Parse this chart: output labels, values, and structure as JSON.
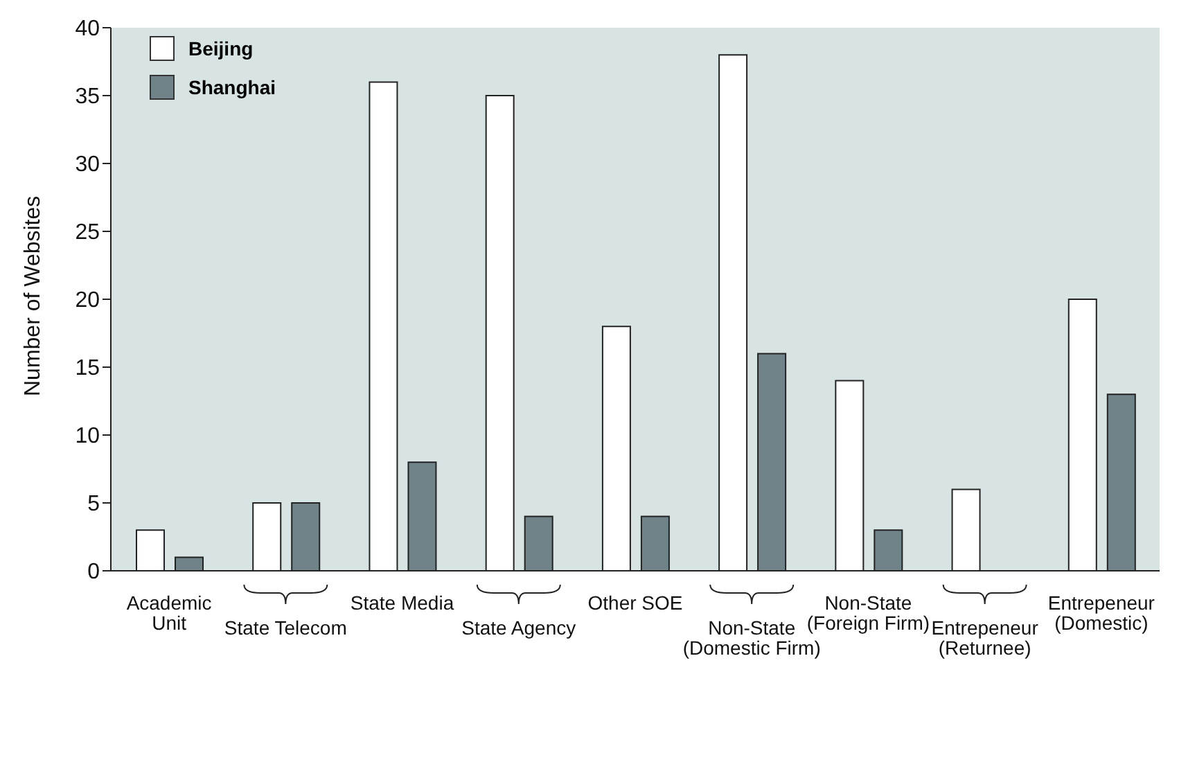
{
  "chart_data": {
    "type": "bar",
    "ylabel": "Number of Websites",
    "categories": [
      "Academic\nUnit",
      "State Telecom",
      "State Media",
      "State Agency",
      "Other SOE",
      "Non-State\n(Domestic Firm)",
      "Non-State\n(Foreign Firm)",
      "Entrepeneur\n(Returnee)",
      "Entrepeneur\n(Domestic)"
    ],
    "series": [
      {
        "name": "Beijing",
        "color": "#ffffff",
        "values": [
          3,
          5,
          36,
          35,
          18,
          38,
          14,
          6,
          20
        ]
      },
      {
        "name": "Shanghai",
        "color": "#6f8389",
        "values": [
          1,
          5,
          8,
          4,
          4,
          16,
          3,
          0,
          13
        ]
      }
    ],
    "ylim": [
      0,
      40
    ],
    "yticks": [
      0,
      5,
      10,
      15,
      20,
      25,
      30,
      35,
      40
    ],
    "legend": "top left"
  }
}
